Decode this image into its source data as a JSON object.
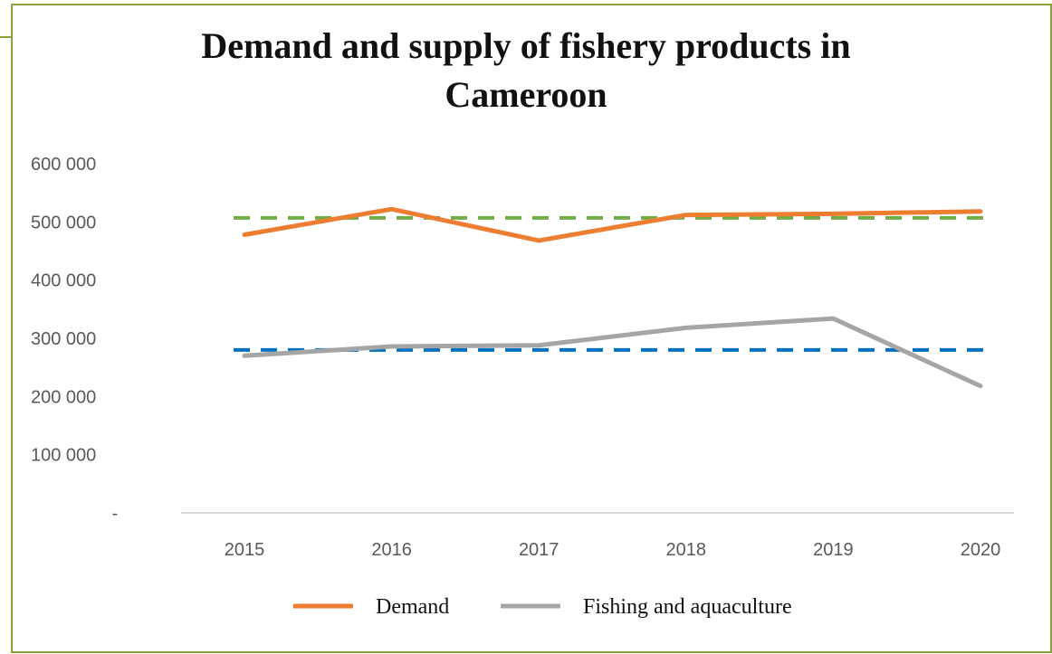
{
  "chart_data": {
    "type": "line",
    "title": "Demand and supply of  fishery products in Cameroon",
    "title_lines": [
      "Demand and supply of  fishery products in",
      "Cameroon"
    ],
    "categories": [
      "2015",
      "2016",
      "2017",
      "2018",
      "2019",
      "2020"
    ],
    "y_tick_labels": [
      "-",
      "100 000",
      "200 000",
      "300 000",
      "400 000",
      "500 000",
      "600 000"
    ],
    "y_ticks": [
      0,
      100000,
      200000,
      300000,
      400000,
      500000,
      600000
    ],
    "ylim": [
      0,
      600000
    ],
    "xlabel": "",
    "ylabel": "",
    "grid": false,
    "legend_position": "bottom",
    "series": [
      {
        "name": "Demand",
        "color": "#ED7D31",
        "values": [
          478000,
          522000,
          468000,
          512000,
          514000,
          518000
        ]
      },
      {
        "name": "Fishing and aquaculture",
        "color": "#A5A5A5",
        "values": [
          270000,
          286000,
          288000,
          318000,
          334000,
          218000
        ]
      }
    ],
    "reference_lines": [
      {
        "color": "#70AD47",
        "value": 507000,
        "style": "dashed"
      },
      {
        "color": "#0070C0",
        "value": 280000,
        "style": "dashed"
      }
    ]
  }
}
